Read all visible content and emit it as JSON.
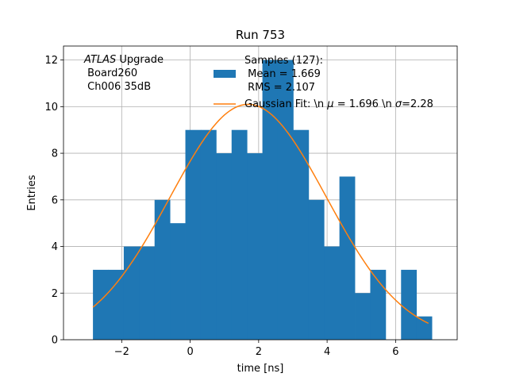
{
  "chart_data": {
    "type": "bar",
    "title": "Run 753",
    "xlabel": "time [ns]",
    "ylabel": "Entries",
    "xlim": [
      -3.7,
      7.8
    ],
    "ylim": [
      0,
      12.6
    ],
    "xticks": [
      -2,
      0,
      2,
      4,
      6
    ],
    "yticks": [
      0,
      2,
      4,
      6,
      8,
      10,
      12
    ],
    "grid": true,
    "histogram": {
      "bin_edges": [
        -2.84,
        -2.39,
        -1.94,
        -1.49,
        -1.04,
        -0.59,
        -0.14,
        0.31,
        0.76,
        1.21,
        1.66,
        2.11,
        2.56,
        3.01,
        3.46,
        3.91,
        4.36,
        4.81,
        5.26,
        5.71,
        6.16,
        6.61,
        7.06
      ],
      "counts": [
        3,
        3,
        4,
        4,
        6,
        5,
        9,
        9,
        8,
        9,
        8,
        12,
        12,
        9,
        6,
        4,
        7,
        2,
        3,
        0,
        3,
        1
      ],
      "color": "#1f77b4"
    },
    "fit": {
      "label": "Gaussian Fit: \\n $\\mu$ = 1.696 \\n $\\sigma$=2.28",
      "mu": 1.696,
      "sigma": 2.28,
      "amplitude": 10.1,
      "x_range": [
        -2.84,
        6.96
      ],
      "color": "#ff7f0e"
    },
    "legend": {
      "placement": "top-center",
      "samples_label_lines": [
        "Samples (127):",
        " Mean = 1.669",
        " RMS = 2.107"
      ],
      "fit_label_display": [
        "Gaussian Fit: \\n ",
        "μ",
        " = 1.696 \\n ",
        "σ",
        "=2.28"
      ]
    },
    "annotation": {
      "italic_part": "ATLAS",
      "rest": " Upgrade",
      "line2": " Board260",
      "line3": " Ch006 35dB"
    }
  }
}
